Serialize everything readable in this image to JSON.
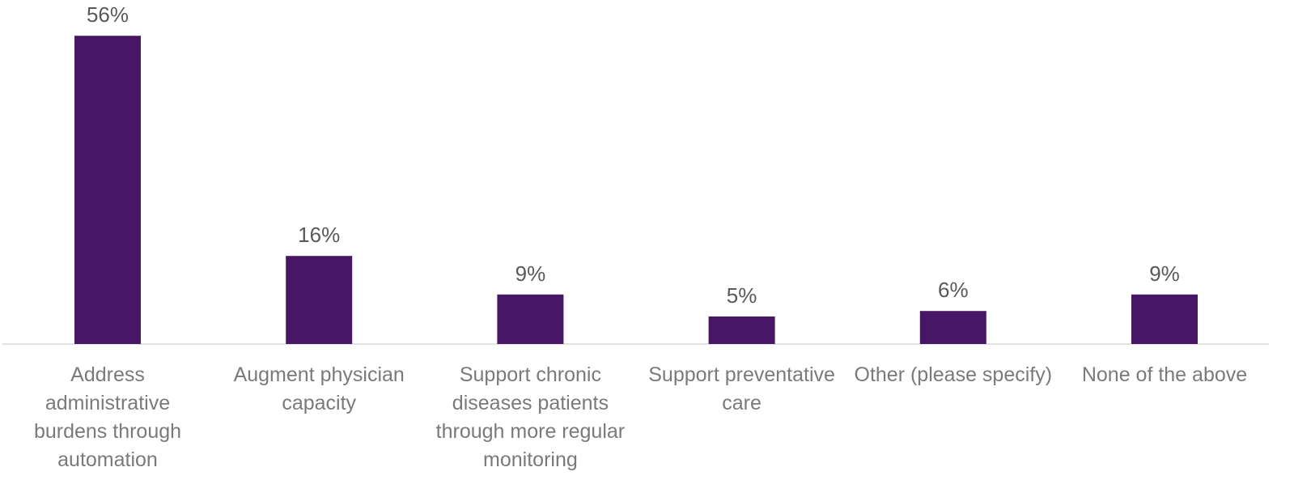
{
  "colors": {
    "bar": "#471665",
    "axis": "#d9d9d9",
    "value_text": "#595959",
    "label_text": "#7a7a7a"
  },
  "chart_data": {
    "type": "bar",
    "title": "",
    "xlabel": "",
    "ylabel": "",
    "ylim": [
      0,
      60
    ],
    "grid": false,
    "legend": "none",
    "categories": [
      [
        "Address",
        "administrative",
        "burdens through",
        "automation"
      ],
      [
        "Augment physician",
        "capacity"
      ],
      [
        "Support chronic",
        "diseases patients",
        "through more regular",
        "monitoring"
      ],
      [
        "Support preventative",
        "care"
      ],
      [
        "Other (please specify)"
      ],
      [
        "None of the above"
      ]
    ],
    "values": [
      56,
      16,
      9,
      5,
      6,
      9
    ],
    "value_labels": [
      "56%",
      "16%",
      "9%",
      "5%",
      "6%",
      "9%"
    ]
  }
}
